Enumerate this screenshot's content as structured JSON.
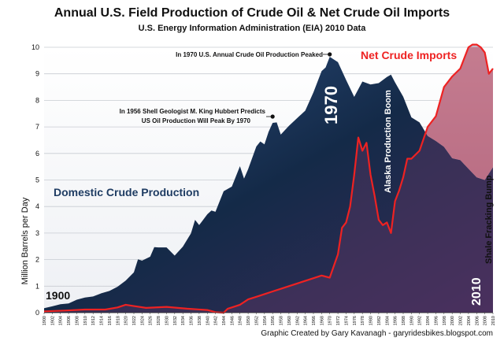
{
  "title": "Annual U.S. Field Production of Crude Oil & Net Crude Oil Imports",
  "subtitle": "U.S. Energy Information Administration (EIA) 2010 Data",
  "credit": "Graphic Created by Gary Kavanagh - garyridesbikes.blogspot.com",
  "chart_data": {
    "type": "area",
    "ylabel": "Million Barrels per Day",
    "ylim": [
      0,
      10
    ],
    "yticks": [
      0,
      1,
      2,
      3,
      4,
      5,
      6,
      7,
      8,
      9,
      10
    ],
    "xlim": [
      1900,
      2010
    ],
    "xticks": [
      1900,
      1902,
      1904,
      1906,
      1908,
      1910,
      1912,
      1914,
      1916,
      1918,
      1920,
      1922,
      1924,
      1926,
      1928,
      1930,
      1932,
      1934,
      1936,
      1938,
      1940,
      1942,
      1944,
      1946,
      1948,
      1950,
      1952,
      1954,
      1956,
      1958,
      1960,
      1962,
      1964,
      1966,
      1968,
      1970,
      1972,
      1974,
      1976,
      1978,
      1980,
      1982,
      1984,
      1986,
      1988,
      1990,
      1992,
      1994,
      1996,
      1998,
      2000,
      2002,
      2004,
      2006,
      2008,
      2010
    ],
    "grid": true,
    "series": [
      {
        "name": "Domestic Crude Production",
        "color": "#1f3c63",
        "x": [
          1900,
          1902,
          1904,
          1906,
          1908,
          1910,
          1912,
          1914,
          1916,
          1918,
          1920,
          1922,
          1923,
          1924,
          1926,
          1927,
          1928,
          1930,
          1932,
          1934,
          1936,
          1937,
          1938,
          1940,
          1941,
          1942,
          1944,
          1946,
          1948,
          1949,
          1950,
          1952,
          1953,
          1954,
          1955,
          1956,
          1957,
          1958,
          1960,
          1962,
          1964,
          1966,
          1968,
          1969,
          1970,
          1972,
          1974,
          1976,
          1978,
          1980,
          1982,
          1984,
          1985,
          1986,
          1988,
          1990,
          1992,
          1994,
          1996,
          1998,
          2000,
          2002,
          2004,
          2006,
          2008,
          2010
        ],
        "values": [
          0.17,
          0.24,
          0.32,
          0.35,
          0.49,
          0.57,
          0.61,
          0.73,
          0.82,
          0.98,
          1.21,
          1.52,
          2.01,
          1.96,
          2.11,
          2.47,
          2.46,
          2.46,
          2.15,
          2.49,
          2.99,
          3.5,
          3.3,
          3.71,
          3.85,
          3.8,
          4.58,
          4.75,
          5.52,
          5.05,
          5.41,
          6.26,
          6.45,
          6.34,
          6.81,
          7.15,
          7.17,
          6.71,
          7.04,
          7.33,
          7.61,
          8.3,
          9.1,
          9.24,
          9.64,
          9.44,
          8.77,
          8.13,
          8.71,
          8.6,
          8.65,
          8.88,
          8.97,
          8.68,
          8.14,
          7.36,
          7.17,
          6.66,
          6.47,
          6.25,
          5.82,
          5.75,
          5.42,
          5.1,
          5.0,
          5.48
        ]
      },
      {
        "name": "Net Crude Imports",
        "color": "#ee2222",
        "x": [
          1900,
          1905,
          1910,
          1915,
          1918,
          1920,
          1922,
          1925,
          1930,
          1935,
          1940,
          1942,
          1944,
          1945,
          1946,
          1948,
          1950,
          1952,
          1954,
          1956,
          1958,
          1960,
          1962,
          1964,
          1966,
          1968,
          1970,
          1972,
          1973,
          1974,
          1975,
          1976,
          1977,
          1978,
          1979,
          1980,
          1981,
          1982,
          1983,
          1984,
          1985,
          1986,
          1987,
          1988,
          1989,
          1990,
          1992,
          1994,
          1996,
          1998,
          2000,
          2002,
          2004,
          2005,
          2006,
          2007,
          2008,
          2009,
          2010
        ],
        "values": [
          0.05,
          0.08,
          0.12,
          0.12,
          0.2,
          0.3,
          0.25,
          0.18,
          0.22,
          0.15,
          0.1,
          0.02,
          0.0,
          0.15,
          0.2,
          0.3,
          0.5,
          0.6,
          0.7,
          0.8,
          0.9,
          1.0,
          1.1,
          1.2,
          1.3,
          1.4,
          1.32,
          2.2,
          3.2,
          3.4,
          4.0,
          5.2,
          6.6,
          6.1,
          6.4,
          5.2,
          4.4,
          3.5,
          3.3,
          3.4,
          3.0,
          4.2,
          4.6,
          5.1,
          5.8,
          5.8,
          6.1,
          7.0,
          7.4,
          8.5,
          8.9,
          9.2,
          10.0,
          10.1,
          10.1,
          10.0,
          9.8,
          9.0,
          9.2
        ]
      }
    ],
    "annotations": [
      {
        "text": "In 1970 U.S. Annual Crude Oil Production Peaked",
        "x": 1970,
        "y": 9.9
      },
      {
        "text": "In 1956 Shell Geologist M. King Hubbert Predicts",
        "x": 1956,
        "y": 7.45
      },
      {
        "text": "US Oil Production Will Peak By 1970",
        "x": 1956,
        "y": 7.45
      },
      {
        "text": "Domestic Crude Production"
      },
      {
        "text": "Net Crude Imports"
      },
      {
        "text": "1900"
      },
      {
        "text": "1970"
      },
      {
        "text": "2010"
      },
      {
        "text": "Alaska Production Boom"
      },
      {
        "text": "Shale Fracking Bump"
      }
    ]
  }
}
